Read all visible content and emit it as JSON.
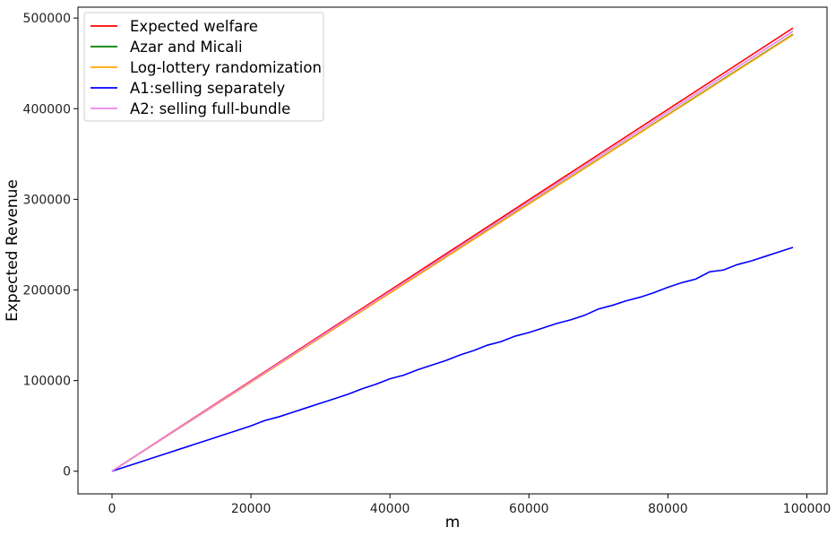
{
  "chart_data": {
    "type": "line",
    "title": "",
    "xlabel": "m",
    "ylabel": "Expected Revenue",
    "xlim": [
      -4900,
      102900
    ],
    "ylim": [
      -25000,
      512000
    ],
    "xticks": [
      0,
      20000,
      40000,
      60000,
      80000,
      100000
    ],
    "yticks": [
      0,
      100000,
      200000,
      300000,
      400000,
      500000
    ],
    "xtick_labels": [
      "0",
      "20000",
      "40000",
      "60000",
      "80000",
      "100000"
    ],
    "ytick_labels": [
      "0",
      "100000",
      "200000",
      "300000",
      "400000",
      "500000"
    ],
    "grid": false,
    "legend_position": "top-left",
    "series": [
      {
        "name": "Expected welfare",
        "color": "#ff0000",
        "x": [
          0,
          98000
        ],
        "y": [
          0,
          489000
        ]
      },
      {
        "name": "Azar and Micali",
        "color": "#008000",
        "x": [
          0,
          98000
        ],
        "y": [
          0,
          482000
        ]
      },
      {
        "name": "Log-lottery randomization",
        "color": "#ffa500",
        "x": [
          0,
          98000
        ],
        "y": [
          0,
          481500
        ]
      },
      {
        "name": "A1:selling separately",
        "color": "#0000ff",
        "x": [
          0,
          2000,
          4000,
          6000,
          8000,
          10000,
          12000,
          14000,
          16000,
          18000,
          20000,
          22000,
          24000,
          26000,
          28000,
          30000,
          32000,
          34000,
          36000,
          38000,
          40000,
          42000,
          44000,
          46000,
          48000,
          50000,
          52000,
          54000,
          56000,
          58000,
          60000,
          62000,
          64000,
          66000,
          68000,
          70000,
          72000,
          74000,
          76000,
          78000,
          80000,
          82000,
          84000,
          86000,
          88000,
          90000,
          92000,
          94000,
          96000,
          98000
        ],
        "y": [
          0,
          5000,
          10000,
          15000,
          20000,
          25000,
          30000,
          35000,
          40000,
          45000,
          50000,
          56000,
          60000,
          65000,
          70000,
          75000,
          80000,
          85000,
          91000,
          96000,
          102000,
          106000,
          112000,
          117000,
          122000,
          128000,
          133000,
          139000,
          143000,
          149000,
          153000,
          158000,
          163000,
          167000,
          172000,
          179000,
          183000,
          188000,
          192000,
          197000,
          203000,
          208000,
          212000,
          220000,
          222000,
          228000,
          232000,
          237000,
          242000,
          247000
        ]
      },
      {
        "name": "A2: selling full-bundle",
        "color": "#ee82ee",
        "x": [
          0,
          98000
        ],
        "y": [
          0,
          485500
        ]
      }
    ]
  }
}
